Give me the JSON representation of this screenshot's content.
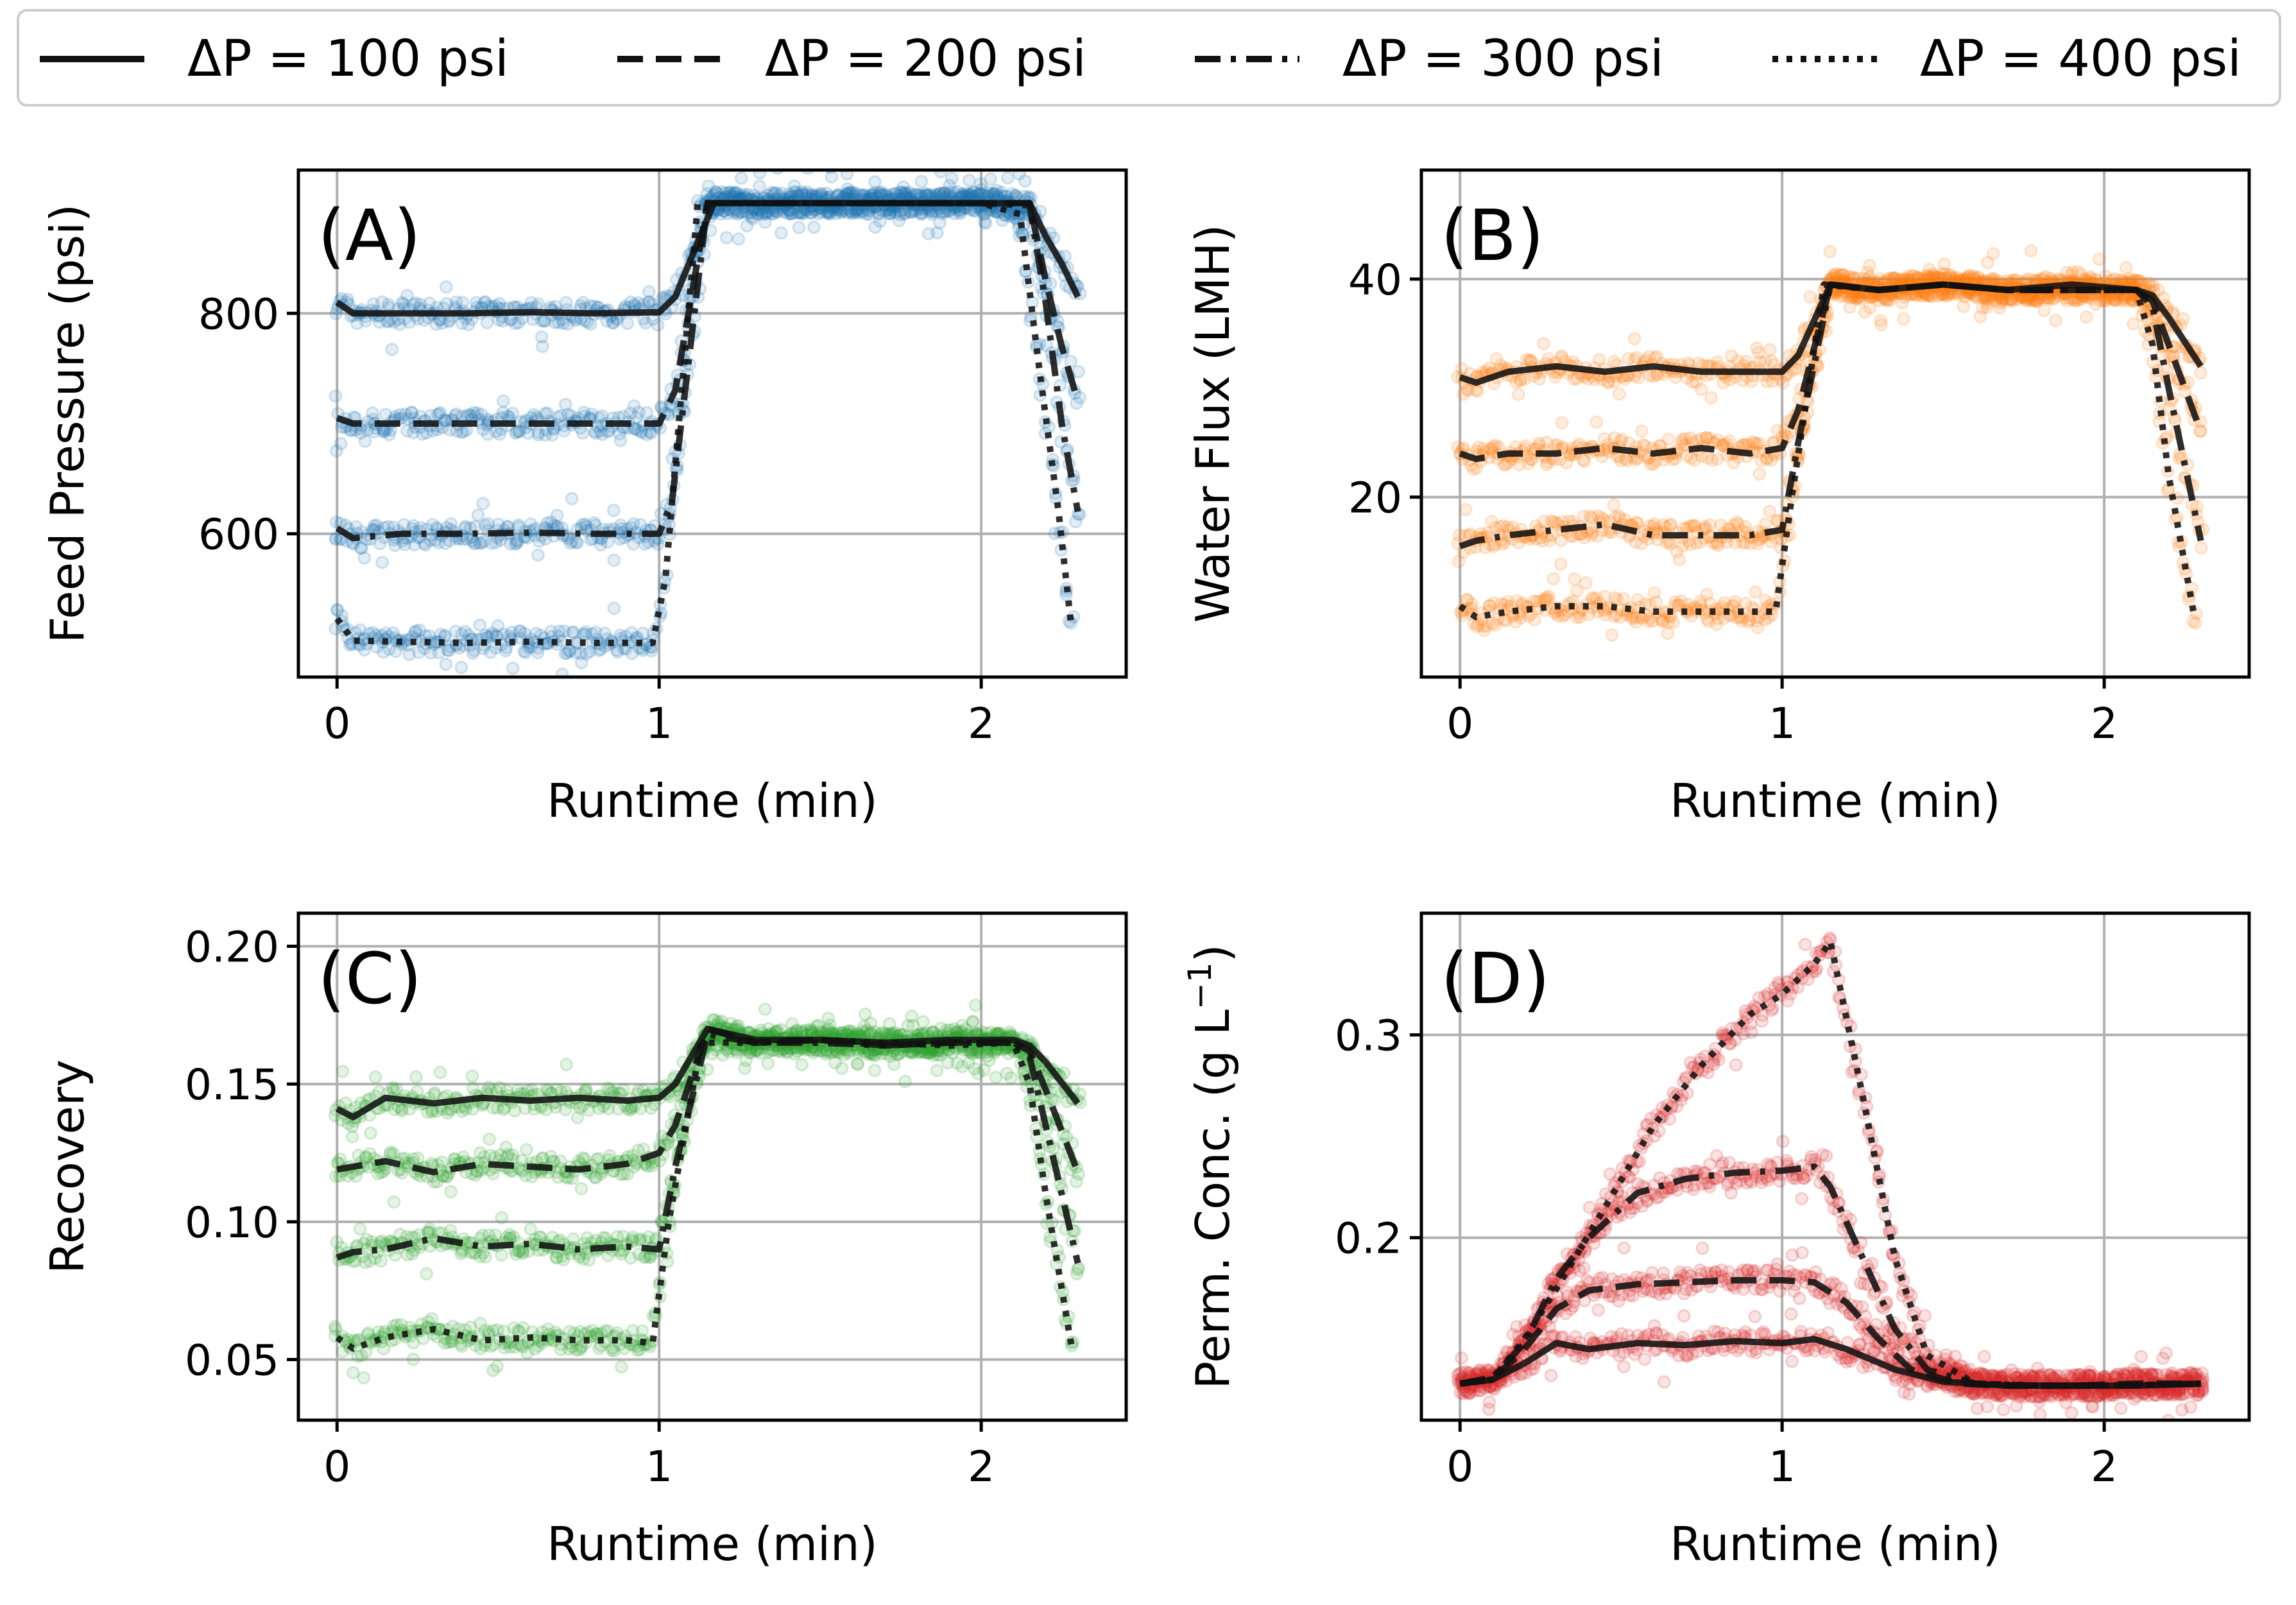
{
  "legend": {
    "items": [
      {
        "label": "ΔP = 100 psi",
        "dash": "solid"
      },
      {
        "label": "ΔP = 200 psi",
        "dash": "dashed"
      },
      {
        "label": "ΔP = 300 psi",
        "dash": "dashdot"
      },
      {
        "label": "ΔP = 400 psi",
        "dash": "dotted"
      }
    ]
  },
  "colors": {
    "A": "#1f77b4",
    "B": "#ff7f0e",
    "C": "#2ca02c",
    "D": "#d62728",
    "line": "#111111"
  },
  "chart_data": [
    {
      "panel": "(A)",
      "type": "line",
      "xlabel": "Runtime (min)",
      "ylabel": "Feed Pressure (psi)",
      "xlim": [
        -0.12,
        2.45
      ],
      "ylim": [
        470,
        930
      ],
      "xticks": [
        0,
        1,
        2
      ],
      "yticks": [
        600,
        800
      ],
      "series": [
        {
          "name": "ΔP = 100 psi",
          "x": [
            0,
            0.05,
            0.2,
            0.4,
            0.6,
            0.8,
            1.0,
            1.05,
            1.17,
            1.5,
            2.0,
            2.15,
            2.2,
            2.25,
            2.3
          ],
          "y": [
            810,
            800,
            800,
            800,
            801,
            800,
            801,
            815,
            900,
            900,
            900,
            900,
            870,
            845,
            815
          ]
        },
        {
          "name": "ΔP = 200 psi",
          "x": [
            0,
            0.05,
            0.2,
            0.4,
            0.6,
            0.8,
            1.0,
            1.05,
            1.15,
            1.5,
            2.0,
            2.15,
            2.2,
            2.25,
            2.3
          ],
          "y": [
            705,
            700,
            700,
            700,
            700,
            700,
            700,
            730,
            900,
            900,
            900,
            900,
            830,
            770,
            720
          ]
        },
        {
          "name": "ΔP = 300 psi",
          "x": [
            0,
            0.05,
            0.2,
            0.4,
            0.6,
            0.8,
            1.0,
            1.04,
            1.15,
            1.5,
            2.0,
            2.15,
            2.2,
            2.25,
            2.3
          ],
          "y": [
            605,
            596,
            600,
            600,
            601,
            600,
            600,
            630,
            900,
            900,
            900,
            898,
            810,
            700,
            620
          ]
        },
        {
          "name": "ΔP = 400 psi",
          "x": [
            0,
            0.05,
            0.2,
            0.4,
            0.6,
            0.8,
            0.98,
            1.02,
            1.12,
            1.5,
            2.0,
            2.12,
            2.18,
            2.24,
            2.28
          ],
          "y": [
            523,
            503,
            502,
            501,
            502,
            501,
            501,
            560,
            900,
            900,
            900,
            890,
            750,
            620,
            515
          ]
        }
      ]
    },
    {
      "panel": "(B)",
      "type": "line",
      "xlabel": "Runtime (min)",
      "ylabel": "Water Flux (LMH)",
      "xlim": [
        -0.12,
        2.45
      ],
      "ylim": [
        3.5,
        50
      ],
      "xticks": [
        0,
        1,
        2
      ],
      "yticks": [
        20,
        40
      ],
      "series": [
        {
          "name": "ΔP = 100 psi",
          "x": [
            0,
            0.05,
            0.15,
            0.3,
            0.45,
            0.6,
            0.75,
            0.9,
            1.0,
            1.05,
            1.15,
            1.3,
            1.5,
            1.7,
            1.9,
            2.1,
            2.15,
            2.2,
            2.3
          ],
          "y": [
            31,
            30.5,
            31.5,
            32,
            31.5,
            32,
            31.5,
            31.5,
            31.5,
            33,
            39.5,
            39,
            39.5,
            39,
            39.5,
            39,
            38.5,
            36.5,
            32
          ]
        },
        {
          "name": "ΔP = 200 psi",
          "x": [
            0,
            0.05,
            0.15,
            0.3,
            0.45,
            0.6,
            0.75,
            0.9,
            1.0,
            1.05,
            1.15,
            1.3,
            1.5,
            1.7,
            1.9,
            2.1,
            2.15,
            2.2,
            2.3
          ],
          "y": [
            24,
            23.5,
            24,
            24,
            24.5,
            24,
            24.5,
            24,
            24.5,
            28,
            39.5,
            39,
            39.5,
            39,
            39,
            39,
            38,
            34,
            26
          ]
        },
        {
          "name": "ΔP = 300 psi",
          "x": [
            0,
            0.05,
            0.15,
            0.3,
            0.45,
            0.6,
            0.75,
            0.9,
            1.0,
            1.05,
            1.15,
            1.3,
            1.5,
            1.7,
            1.9,
            2.1,
            2.15,
            2.2,
            2.3
          ],
          "y": [
            15.5,
            16,
            16.5,
            17,
            17.5,
            16.5,
            16.5,
            16.5,
            17,
            25,
            39.5,
            39,
            39.5,
            39,
            39,
            39,
            37.5,
            30,
            16
          ]
        },
        {
          "name": "ΔP = 400 psi",
          "x": [
            0,
            0.05,
            0.15,
            0.3,
            0.45,
            0.6,
            0.75,
            0.9,
            0.98,
            1.03,
            1.13,
            1.3,
            1.5,
            1.7,
            1.9,
            2.1,
            2.15,
            2.2,
            2.28
          ],
          "y": [
            10,
            9,
            9.5,
            10,
            10,
            9.5,
            9.5,
            9.5,
            9.5,
            20,
            39.5,
            39,
            39.5,
            39,
            39,
            39,
            34,
            22,
            9
          ]
        }
      ]
    },
    {
      "panel": "(C)",
      "type": "line",
      "xlabel": "Runtime (min)",
      "ylabel": "Recovery",
      "xlim": [
        -0.12,
        2.45
      ],
      "ylim": [
        0.028,
        0.212
      ],
      "xticks": [
        0,
        1,
        2
      ],
      "yticks": [
        0.05,
        0.1,
        0.15,
        0.2
      ],
      "ytick_labels": [
        "0.05",
        "0.10",
        "0.15",
        "0.20"
      ],
      "series": [
        {
          "name": "ΔP = 100 psi",
          "x": [
            0,
            0.05,
            0.15,
            0.3,
            0.45,
            0.6,
            0.75,
            0.9,
            1.0,
            1.05,
            1.15,
            1.3,
            1.5,
            1.7,
            1.9,
            2.1,
            2.15,
            2.2,
            2.3
          ],
          "y": [
            0.141,
            0.138,
            0.145,
            0.143,
            0.145,
            0.144,
            0.145,
            0.144,
            0.145,
            0.15,
            0.17,
            0.166,
            0.166,
            0.165,
            0.166,
            0.166,
            0.164,
            0.158,
            0.143
          ]
        },
        {
          "name": "ΔP = 200 psi",
          "x": [
            0,
            0.05,
            0.15,
            0.3,
            0.45,
            0.6,
            0.75,
            0.9,
            1.0,
            1.05,
            1.15,
            1.3,
            1.5,
            1.7,
            1.9,
            2.1,
            2.15,
            2.2,
            2.3
          ],
          "y": [
            0.119,
            0.12,
            0.122,
            0.118,
            0.121,
            0.12,
            0.119,
            0.121,
            0.125,
            0.135,
            0.17,
            0.165,
            0.166,
            0.164,
            0.165,
            0.165,
            0.162,
            0.148,
            0.118
          ]
        },
        {
          "name": "ΔP = 300 psi",
          "x": [
            0,
            0.05,
            0.15,
            0.3,
            0.45,
            0.6,
            0.75,
            0.9,
            1.0,
            1.05,
            1.15,
            1.3,
            1.5,
            1.7,
            1.9,
            2.1,
            2.15,
            2.2,
            2.3
          ],
          "y": [
            0.087,
            0.089,
            0.09,
            0.094,
            0.091,
            0.092,
            0.09,
            0.091,
            0.09,
            0.12,
            0.168,
            0.165,
            0.165,
            0.164,
            0.165,
            0.165,
            0.16,
            0.135,
            0.085
          ]
        },
        {
          "name": "ΔP = 400 psi",
          "x": [
            0,
            0.05,
            0.15,
            0.3,
            0.45,
            0.6,
            0.75,
            0.9,
            0.98,
            1.03,
            1.13,
            1.3,
            1.5,
            1.7,
            1.9,
            2.1,
            2.15,
            2.2,
            2.28
          ],
          "y": [
            0.058,
            0.054,
            0.058,
            0.061,
            0.057,
            0.058,
            0.057,
            0.057,
            0.056,
            0.1,
            0.165,
            0.165,
            0.166,
            0.165,
            0.164,
            0.165,
            0.15,
            0.11,
            0.055
          ]
        }
      ]
    },
    {
      "panel": "(D)",
      "type": "line",
      "xlabel": "Runtime (min)",
      "ylabel": "Perm. Conc. (g L",
      "ylabel_superscript": "−1",
      "ylabel_close": ")",
      "xlim": [
        -0.12,
        2.45
      ],
      "ylim": [
        0.11,
        0.36
      ],
      "xticks": [
        0,
        1,
        2
      ],
      "yticks": [
        0.2,
        0.3
      ],
      "ytick_labels": [
        "0.2",
        "0.3"
      ],
      "series": [
        {
          "name": "ΔP = 100 psi",
          "x": [
            0,
            0.1,
            0.2,
            0.3,
            0.4,
            0.55,
            0.7,
            0.85,
            1.0,
            1.1,
            1.2,
            1.35,
            1.5,
            1.7,
            1.9,
            2.1,
            2.3
          ],
          "y": [
            0.128,
            0.13,
            0.138,
            0.148,
            0.145,
            0.148,
            0.147,
            0.149,
            0.148,
            0.15,
            0.145,
            0.135,
            0.129,
            0.127,
            0.127,
            0.127,
            0.128
          ]
        },
        {
          "name": "ΔP = 200 psi",
          "x": [
            0,
            0.1,
            0.2,
            0.3,
            0.4,
            0.55,
            0.7,
            0.85,
            1.0,
            1.1,
            1.2,
            1.3,
            1.4,
            1.55,
            1.7,
            1.9,
            2.1,
            2.3
          ],
          "y": [
            0.128,
            0.13,
            0.145,
            0.165,
            0.174,
            0.177,
            0.178,
            0.179,
            0.179,
            0.178,
            0.168,
            0.15,
            0.135,
            0.128,
            0.127,
            0.127,
            0.128,
            0.128
          ]
        },
        {
          "name": "ΔP = 300 psi",
          "x": [
            0,
            0.1,
            0.2,
            0.3,
            0.4,
            0.55,
            0.7,
            0.85,
            1.0,
            1.1,
            1.15,
            1.25,
            1.35,
            1.45,
            1.6,
            1.8,
            2.0,
            2.3
          ],
          "y": [
            0.128,
            0.131,
            0.148,
            0.18,
            0.2,
            0.222,
            0.229,
            0.232,
            0.233,
            0.235,
            0.225,
            0.19,
            0.155,
            0.135,
            0.128,
            0.127,
            0.127,
            0.128
          ]
        },
        {
          "name": "ΔP = 400 psi",
          "x": [
            0,
            0.1,
            0.2,
            0.3,
            0.45,
            0.6,
            0.75,
            0.9,
            1.0,
            1.1,
            1.15,
            1.25,
            1.35,
            1.45,
            1.6,
            1.8,
            2.0,
            2.3
          ],
          "y": [
            0.128,
            0.13,
            0.15,
            0.175,
            0.215,
            0.255,
            0.285,
            0.31,
            0.32,
            0.335,
            0.346,
            0.27,
            0.19,
            0.142,
            0.128,
            0.127,
            0.127,
            0.128
          ]
        }
      ]
    }
  ]
}
